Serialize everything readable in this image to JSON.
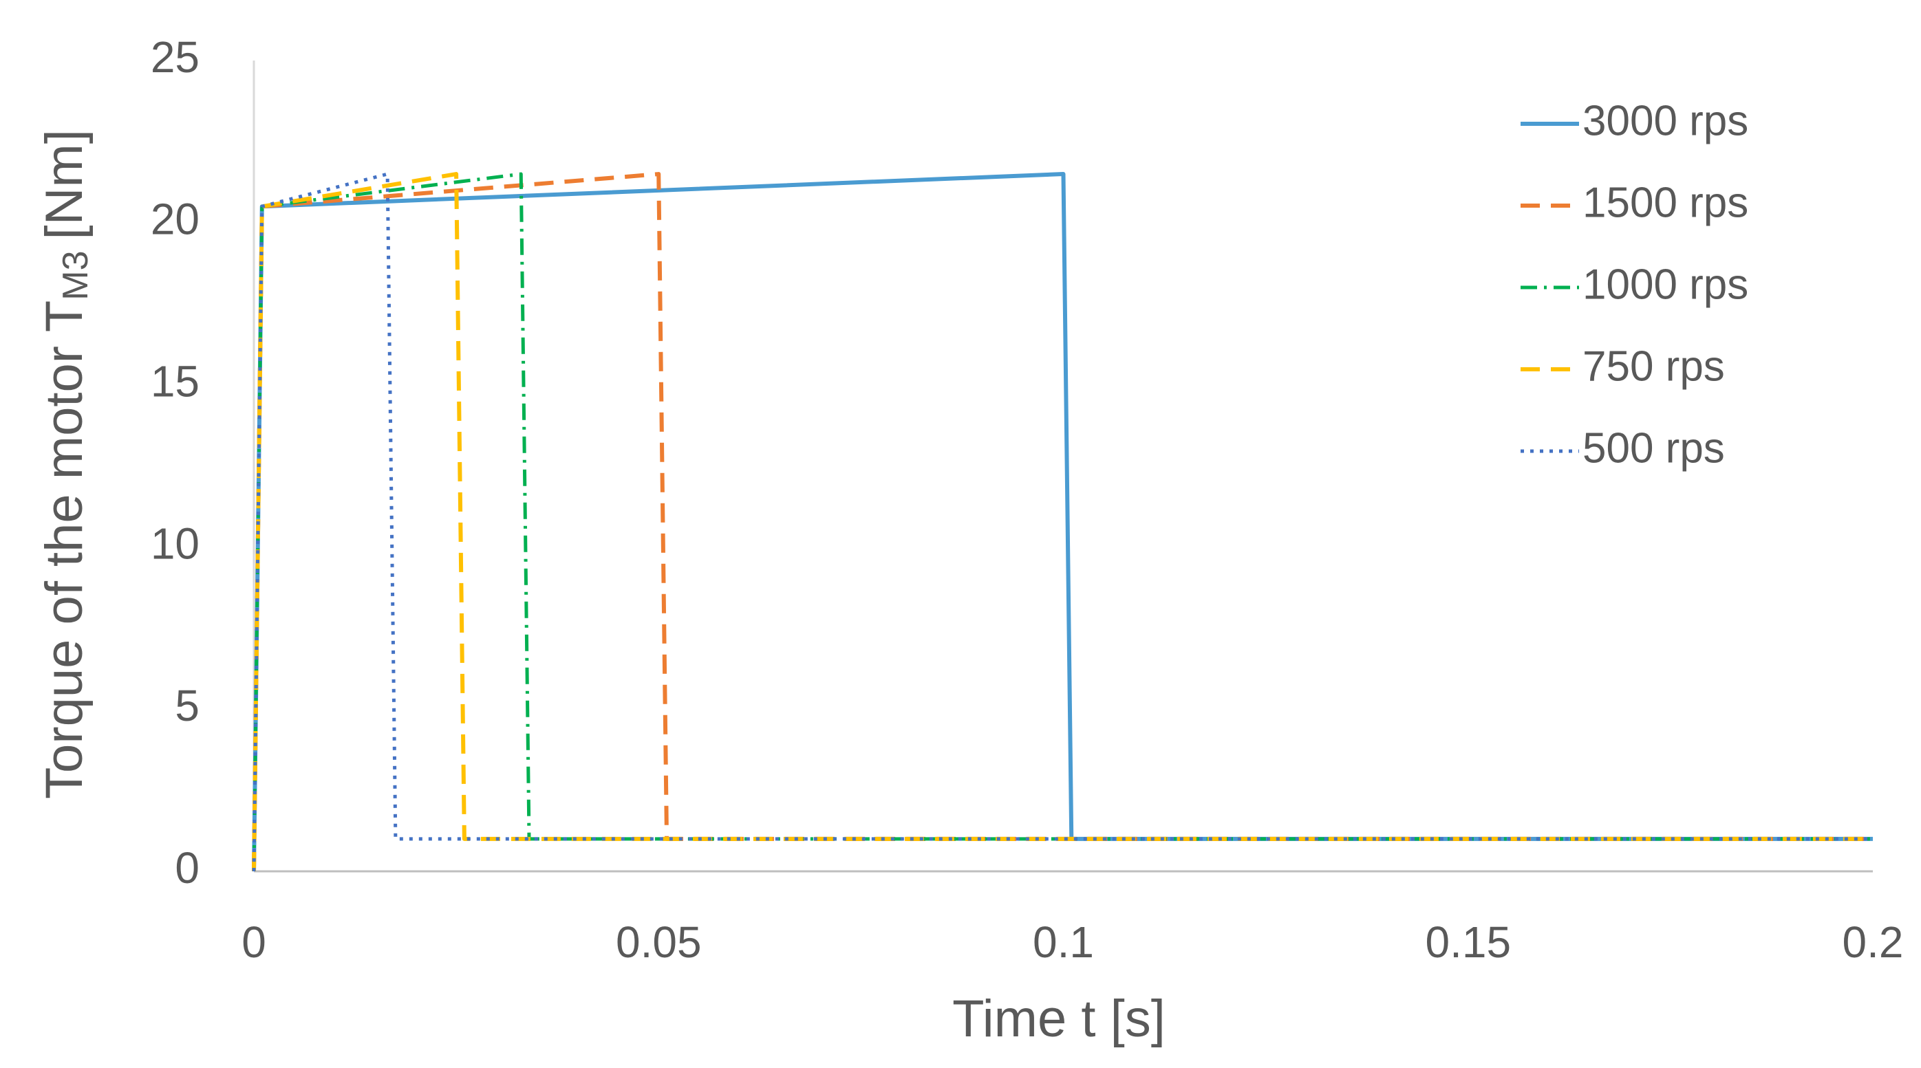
{
  "chart_data": {
    "type": "line",
    "xlabel": "Time t [s]",
    "ylabel": "Torque of the motor T",
    "ylabel_sub": "M3",
    "ylabel_unit": "[Nm]",
    "xlim": [
      0,
      0.2
    ],
    "xticks": [
      0,
      0.05,
      0.1,
      0.15,
      0.2
    ],
    "ylim": [
      0,
      25
    ],
    "yticks": [
      0,
      5,
      10,
      15,
      20,
      25
    ],
    "grid": false,
    "legend": "upper right",
    "series": [
      {
        "name": "3000 rps",
        "color": "#4a9bd1",
        "dash": "solid",
        "x": [
          0,
          0.001,
          0.1,
          0.101,
          0.2
        ],
        "values": [
          0,
          20.5,
          21.5,
          1,
          1
        ]
      },
      {
        "name": "1500 rps",
        "color": "#ed7d31",
        "dash": "dashed",
        "x": [
          0,
          0.001,
          0.05,
          0.051,
          0.2
        ],
        "values": [
          0,
          20.5,
          21.5,
          1,
          1
        ]
      },
      {
        "name": "1000 rps",
        "color": "#00b050",
        "dash": "dashdot",
        "x": [
          0,
          0.001,
          0.033,
          0.034,
          0.2
        ],
        "values": [
          0,
          20.5,
          21.5,
          1,
          1
        ]
      },
      {
        "name": "750 rps",
        "color": "#ffc000",
        "dash": "dashed",
        "x": [
          0,
          0.001,
          0.025,
          0.026,
          0.2
        ],
        "values": [
          0,
          20.5,
          21.5,
          1,
          1
        ]
      },
      {
        "name": "500 rps",
        "color": "#4472c4",
        "dash": "dotted",
        "x": [
          0,
          0.001,
          0.0165,
          0.0175,
          0.2
        ],
        "values": [
          0,
          20.5,
          21.5,
          1,
          1
        ]
      }
    ]
  }
}
